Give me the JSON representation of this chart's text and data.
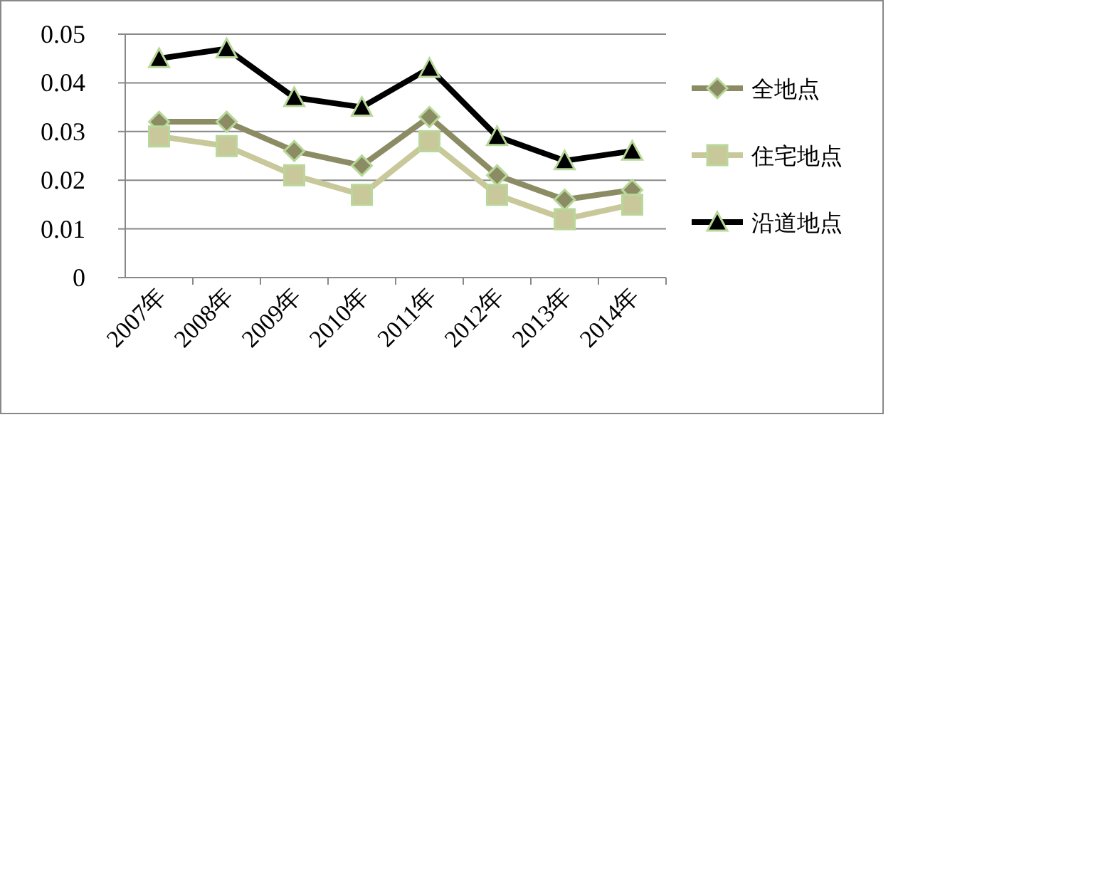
{
  "chart_data": {
    "type": "line",
    "categories": [
      "2007年",
      "2008年",
      "2009年",
      "2010年",
      "2011年",
      "2012年",
      "2013年",
      "2014年"
    ],
    "series": [
      {
        "name": "全地点",
        "color": "#8c8c64",
        "marker": "diamond",
        "values": [
          0.032,
          0.032,
          0.026,
          0.023,
          0.033,
          0.021,
          0.016,
          0.018
        ]
      },
      {
        "name": "住宅地点",
        "color": "#c8c89a",
        "marker": "square",
        "values": [
          0.029,
          0.027,
          0.021,
          0.017,
          0.028,
          0.017,
          0.012,
          0.015
        ]
      },
      {
        "name": "沿道地点",
        "color": "#000000",
        "marker": "triangle",
        "values": [
          0.045,
          0.047,
          0.037,
          0.035,
          0.043,
          0.029,
          0.024,
          0.026
        ]
      }
    ],
    "ylim": [
      0,
      0.05
    ],
    "yticks": [
      0,
      0.01,
      0.02,
      0.03,
      0.04,
      0.05
    ],
    "grid": "y",
    "legend": "right",
    "line_style": "solid"
  }
}
